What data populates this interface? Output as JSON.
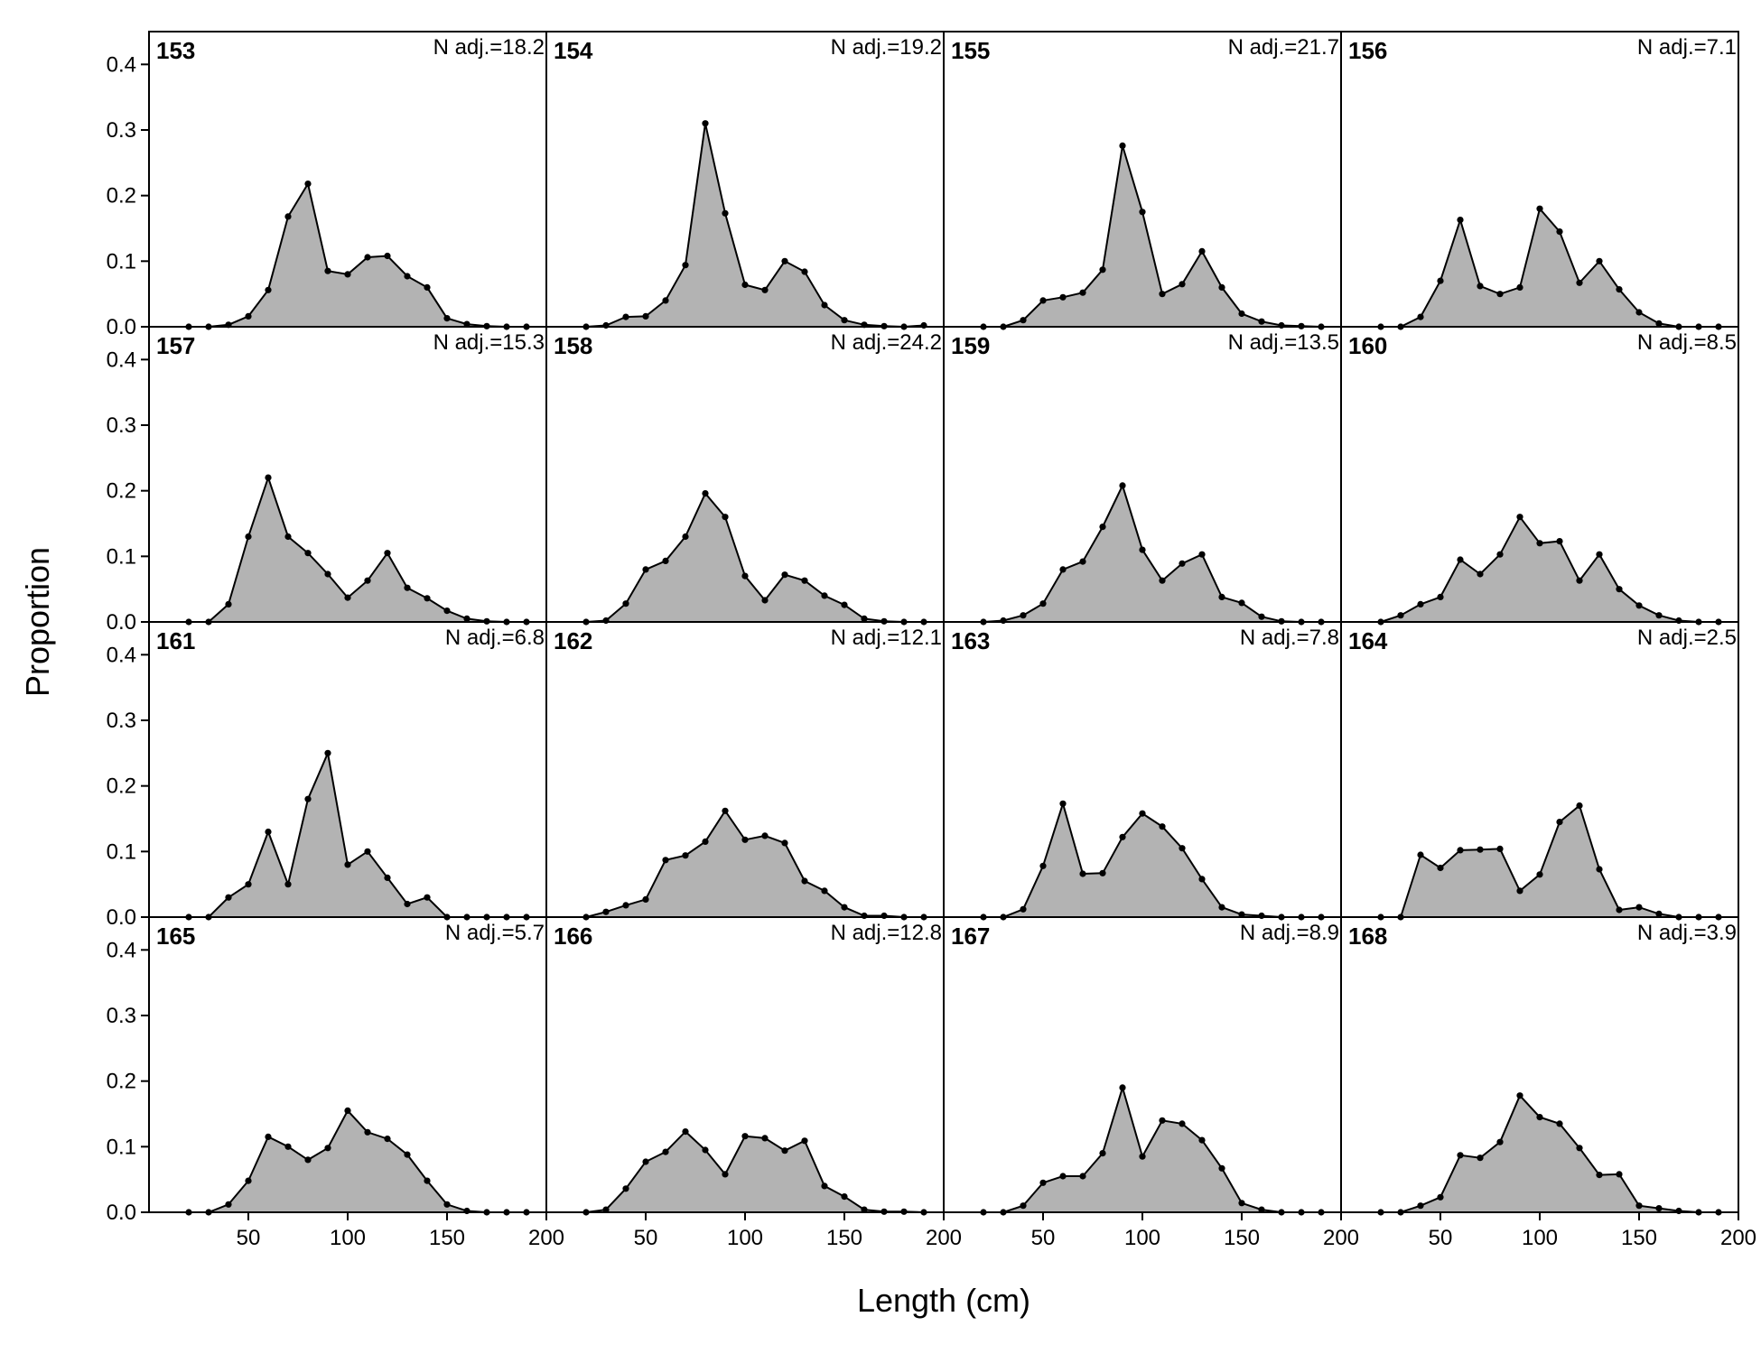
{
  "chart_data": {
    "type": "area",
    "xlabel": "Length (cm)",
    "ylabel": "Proportion",
    "xlim": [
      0,
      200
    ],
    "ylim": [
      0,
      0.45
    ],
    "x_ticks": [
      50,
      100,
      150,
      200
    ],
    "y_ticks": [
      0.0,
      0.1,
      0.2,
      0.3,
      0.4
    ],
    "y_tick_labels": [
      "0.0",
      "0.1",
      "0.2",
      "0.3",
      "0.4"
    ],
    "grid": false,
    "fill_color": "#b3b3b3",
    "line_color": "#000000",
    "x": [
      20,
      30,
      40,
      50,
      60,
      70,
      80,
      90,
      100,
      110,
      120,
      130,
      140,
      150,
      160,
      170,
      180,
      190
    ],
    "panels": [
      {
        "id": "153",
        "n_adj": "N adj.=18.2",
        "values": [
          0,
          0,
          0.003,
          0.016,
          0.056,
          0.168,
          0.218,
          0.085,
          0.08,
          0.106,
          0.108,
          0.077,
          0.06,
          0.013,
          0.004,
          0.001,
          0,
          0
        ]
      },
      {
        "id": "157",
        "n_adj": "N adj.=15.3",
        "values": [
          0,
          0,
          0.027,
          0.13,
          0.22,
          0.13,
          0.105,
          0.073,
          0.037,
          0.063,
          0.105,
          0.052,
          0.036,
          0.017,
          0.005,
          0.001,
          0,
          0
        ]
      },
      {
        "id": "161",
        "n_adj": "N adj.=6.8",
        "values": [
          0,
          0,
          0.03,
          0.05,
          0.13,
          0.05,
          0.18,
          0.25,
          0.08,
          0.1,
          0.06,
          0.02,
          0.03,
          0,
          0,
          0,
          0,
          0
        ]
      },
      {
        "id": "165",
        "n_adj": "N adj.=5.7",
        "values": [
          0,
          0,
          0.012,
          0.048,
          0.115,
          0.1,
          0.08,
          0.098,
          0.155,
          0.122,
          0.112,
          0.088,
          0.048,
          0.012,
          0.002,
          0,
          0,
          0
        ]
      },
      {
        "id": "154",
        "n_adj": "N adj.=19.2",
        "values": [
          0,
          0.002,
          0.015,
          0.016,
          0.04,
          0.094,
          0.31,
          0.173,
          0.064,
          0.056,
          0.1,
          0.084,
          0.033,
          0.01,
          0.003,
          0.001,
          0,
          0.002
        ]
      },
      {
        "id": "158",
        "n_adj": "N adj.=24.2",
        "values": [
          0,
          0.002,
          0.028,
          0.08,
          0.093,
          0.13,
          0.196,
          0.16,
          0.07,
          0.033,
          0.072,
          0.063,
          0.04,
          0.026,
          0.005,
          0.001,
          0,
          0
        ]
      },
      {
        "id": "162",
        "n_adj": "N adj.=12.1",
        "values": [
          0,
          0.008,
          0.018,
          0.027,
          0.087,
          0.094,
          0.115,
          0.162,
          0.118,
          0.124,
          0.113,
          0.055,
          0.04,
          0.015,
          0.002,
          0.002,
          0,
          0
        ]
      },
      {
        "id": "166",
        "n_adj": "N adj.=12.8",
        "values": [
          0,
          0.004,
          0.036,
          0.077,
          0.092,
          0.123,
          0.095,
          0.058,
          0.116,
          0.113,
          0.094,
          0.109,
          0.04,
          0.024,
          0.004,
          0.001,
          0.001,
          0
        ]
      },
      {
        "id": "155",
        "n_adj": "N adj.=21.7",
        "values": [
          0,
          0,
          0.01,
          0.04,
          0.045,
          0.052,
          0.087,
          0.276,
          0.175,
          0.05,
          0.065,
          0.115,
          0.06,
          0.02,
          0.008,
          0.002,
          0.001,
          0
        ]
      },
      {
        "id": "159",
        "n_adj": "N adj.=13.5",
        "values": [
          0,
          0.002,
          0.01,
          0.028,
          0.08,
          0.092,
          0.145,
          0.208,
          0.11,
          0.063,
          0.089,
          0.103,
          0.038,
          0.029,
          0.008,
          0.001,
          0,
          0
        ]
      },
      {
        "id": "163",
        "n_adj": "N adj.=7.8",
        "values": [
          0,
          0,
          0.012,
          0.078,
          0.173,
          0.066,
          0.067,
          0.122,
          0.158,
          0.138,
          0.105,
          0.058,
          0.015,
          0.004,
          0.002,
          0,
          0,
          0
        ]
      },
      {
        "id": "167",
        "n_adj": "N adj.=8.9",
        "values": [
          0,
          0,
          0.01,
          0.045,
          0.055,
          0.055,
          0.09,
          0.19,
          0.085,
          0.14,
          0.135,
          0.11,
          0.067,
          0.014,
          0.004,
          0,
          0,
          0
        ]
      },
      {
        "id": "156",
        "n_adj": "N adj.=7.1",
        "values": [
          0,
          0,
          0.015,
          0.07,
          0.163,
          0.062,
          0.05,
          0.06,
          0.18,
          0.145,
          0.067,
          0.1,
          0.057,
          0.022,
          0.005,
          0,
          0,
          0
        ]
      },
      {
        "id": "160",
        "n_adj": "N adj.=8.5",
        "values": [
          0,
          0.01,
          0.027,
          0.038,
          0.095,
          0.073,
          0.103,
          0.16,
          0.12,
          0.123,
          0.063,
          0.103,
          0.05,
          0.025,
          0.01,
          0.002,
          0,
          0
        ]
      },
      {
        "id": "164",
        "n_adj": "N adj.=2.5",
        "values": [
          0,
          0,
          0.095,
          0.075,
          0.102,
          0.103,
          0.104,
          0.04,
          0.065,
          0.145,
          0.17,
          0.073,
          0.011,
          0.015,
          0.005,
          0,
          0,
          0
        ]
      },
      {
        "id": "168",
        "n_adj": "N adj.=3.9",
        "values": [
          0,
          0,
          0.01,
          0.023,
          0.087,
          0.083,
          0.107,
          0.178,
          0.145,
          0.135,
          0.098,
          0.057,
          0.058,
          0.01,
          0.006,
          0.002,
          0,
          0
        ]
      }
    ]
  }
}
